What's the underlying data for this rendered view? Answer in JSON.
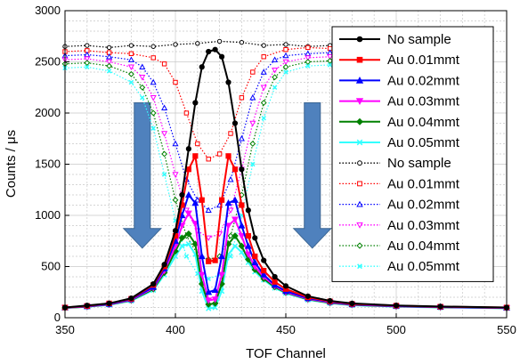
{
  "chart_data": {
    "type": "line",
    "xlabel": "TOF Channel",
    "ylabel": "Counts / μs",
    "xlim": [
      350,
      550
    ],
    "ylim": [
      0,
      3000
    ],
    "x_ticks": [
      350,
      400,
      450,
      500,
      550
    ],
    "y_ticks": [
      0,
      500,
      1000,
      1500,
      2000,
      2500,
      3000
    ],
    "grid": true,
    "legend_position": "top-right",
    "annotations": [
      {
        "type": "down-arrow",
        "x": 385,
        "y_from": 2100,
        "y_to": 680,
        "color": "#4f81bd"
      },
      {
        "type": "down-arrow",
        "x": 462,
        "y_from": 2100,
        "y_to": 680,
        "color": "#4f81bd"
      }
    ],
    "series": [
      {
        "name": "No sample",
        "color": "#000000",
        "style": "solid",
        "marker": "circle",
        "points": [
          [
            350,
            100
          ],
          [
            360,
            120
          ],
          [
            370,
            140
          ],
          [
            380,
            190
          ],
          [
            390,
            330
          ],
          [
            395,
            520
          ],
          [
            400,
            850
          ],
          [
            403,
            1200
          ],
          [
            406,
            1650
          ],
          [
            409,
            2100
          ],
          [
            412,
            2450
          ],
          [
            415,
            2600
          ],
          [
            418,
            2620
          ],
          [
            421,
            2550
          ],
          [
            424,
            2300
          ],
          [
            427,
            1900
          ],
          [
            430,
            1450
          ],
          [
            433,
            1050
          ],
          [
            436,
            780
          ],
          [
            440,
            560
          ],
          [
            445,
            400
          ],
          [
            450,
            310
          ],
          [
            460,
            210
          ],
          [
            470,
            165
          ],
          [
            480,
            140
          ],
          [
            500,
            120
          ],
          [
            520,
            110
          ],
          [
            550,
            100
          ]
        ]
      },
      {
        "name": "Au 0.01mmt",
        "color": "#ff0000",
        "style": "solid",
        "marker": "square",
        "points": [
          [
            350,
            100
          ],
          [
            360,
            115
          ],
          [
            370,
            140
          ],
          [
            380,
            185
          ],
          [
            390,
            320
          ],
          [
            395,
            500
          ],
          [
            400,
            800
          ],
          [
            403,
            1100
          ],
          [
            406,
            1450
          ],
          [
            409,
            1580
          ],
          [
            412,
            1150
          ],
          [
            415,
            550
          ],
          [
            418,
            560
          ],
          [
            421,
            1150
          ],
          [
            424,
            1580
          ],
          [
            427,
            1450
          ],
          [
            430,
            1100
          ],
          [
            433,
            800
          ],
          [
            436,
            600
          ],
          [
            440,
            460
          ],
          [
            445,
            350
          ],
          [
            450,
            280
          ],
          [
            460,
            200
          ],
          [
            470,
            160
          ],
          [
            480,
            135
          ],
          [
            500,
            118
          ],
          [
            520,
            108
          ],
          [
            550,
            100
          ]
        ]
      },
      {
        "name": "Au 0.02mmt",
        "color": "#0000ff",
        "style": "solid",
        "marker": "triangle",
        "points": [
          [
            350,
            100
          ],
          [
            360,
            112
          ],
          [
            370,
            135
          ],
          [
            380,
            180
          ],
          [
            390,
            300
          ],
          [
            395,
            480
          ],
          [
            400,
            750
          ],
          [
            403,
            1000
          ],
          [
            406,
            1200
          ],
          [
            409,
            1120
          ],
          [
            412,
            600
          ],
          [
            415,
            250
          ],
          [
            418,
            270
          ],
          [
            421,
            600
          ],
          [
            424,
            1120
          ],
          [
            427,
            1150
          ],
          [
            430,
            900
          ],
          [
            433,
            700
          ],
          [
            436,
            540
          ],
          [
            440,
            420
          ],
          [
            445,
            320
          ],
          [
            450,
            260
          ],
          [
            460,
            190
          ],
          [
            470,
            155
          ],
          [
            480,
            130
          ],
          [
            500,
            115
          ],
          [
            520,
            105
          ],
          [
            550,
            98
          ]
        ]
      },
      {
        "name": "Au 0.03mmt",
        "color": "#ff00ff",
        "style": "solid",
        "marker": "triangle-down",
        "points": [
          [
            350,
            98
          ],
          [
            360,
            110
          ],
          [
            370,
            130
          ],
          [
            380,
            175
          ],
          [
            390,
            290
          ],
          [
            395,
            460
          ],
          [
            400,
            700
          ],
          [
            403,
            900
          ],
          [
            406,
            1020
          ],
          [
            409,
            920
          ],
          [
            412,
            420
          ],
          [
            415,
            170
          ],
          [
            418,
            180
          ],
          [
            421,
            420
          ],
          [
            424,
            900
          ],
          [
            427,
            960
          ],
          [
            430,
            800
          ],
          [
            433,
            620
          ],
          [
            436,
            500
          ],
          [
            440,
            400
          ],
          [
            445,
            310
          ],
          [
            450,
            250
          ],
          [
            460,
            185
          ],
          [
            470,
            150
          ],
          [
            480,
            128
          ],
          [
            500,
            112
          ],
          [
            520,
            104
          ],
          [
            550,
            96
          ]
        ]
      },
      {
        "name": "Au 0.04mmt",
        "color": "#008000",
        "style": "solid",
        "marker": "diamond",
        "points": [
          [
            350,
            96
          ],
          [
            360,
            108
          ],
          [
            370,
            128
          ],
          [
            380,
            170
          ],
          [
            390,
            280
          ],
          [
            395,
            440
          ],
          [
            400,
            650
          ],
          [
            403,
            780
          ],
          [
            406,
            820
          ],
          [
            409,
            720
          ],
          [
            412,
            330
          ],
          [
            415,
            130
          ],
          [
            418,
            140
          ],
          [
            421,
            330
          ],
          [
            424,
            720
          ],
          [
            427,
            800
          ],
          [
            430,
            700
          ],
          [
            433,
            570
          ],
          [
            436,
            470
          ],
          [
            440,
            380
          ],
          [
            445,
            300
          ],
          [
            450,
            245
          ],
          [
            460,
            180
          ],
          [
            470,
            145
          ],
          [
            480,
            125
          ],
          [
            500,
            110
          ],
          [
            520,
            102
          ],
          [
            550,
            94
          ]
        ]
      },
      {
        "name": "Au 0.05mmt",
        "color": "#33ffff",
        "style": "solid",
        "marker": "x",
        "points": [
          [
            350,
            95
          ],
          [
            360,
            106
          ],
          [
            370,
            125
          ],
          [
            380,
            165
          ],
          [
            390,
            270
          ],
          [
            395,
            420
          ],
          [
            400,
            600
          ],
          [
            403,
            700
          ],
          [
            406,
            720
          ],
          [
            409,
            620
          ],
          [
            412,
            260
          ],
          [
            415,
            90
          ],
          [
            418,
            100
          ],
          [
            421,
            260
          ],
          [
            424,
            620
          ],
          [
            427,
            700
          ],
          [
            430,
            640
          ],
          [
            433,
            540
          ],
          [
            436,
            450
          ],
          [
            440,
            370
          ],
          [
            445,
            290
          ],
          [
            450,
            240
          ],
          [
            460,
            175
          ],
          [
            470,
            142
          ],
          [
            480,
            122
          ],
          [
            500,
            108
          ],
          [
            520,
            100
          ],
          [
            550,
            92
          ]
        ]
      },
      {
        "name": "No sample",
        "color": "#000000",
        "style": "dotted",
        "marker": "open-circle",
        "points": [
          [
            350,
            2650
          ],
          [
            360,
            2660
          ],
          [
            370,
            2640
          ],
          [
            380,
            2660
          ],
          [
            390,
            2650
          ],
          [
            400,
            2670
          ],
          [
            410,
            2680
          ],
          [
            420,
            2700
          ],
          [
            430,
            2690
          ],
          [
            440,
            2660
          ],
          [
            450,
            2670
          ],
          [
            460,
            2650
          ],
          [
            470,
            2660
          ],
          [
            480,
            2640
          ],
          [
            490,
            2655
          ]
        ]
      },
      {
        "name": "Au 0.01mmt",
        "color": "#ff0000",
        "style": "dotted",
        "marker": "open-square",
        "points": [
          [
            350,
            2600
          ],
          [
            360,
            2610
          ],
          [
            370,
            2590
          ],
          [
            380,
            2580
          ],
          [
            390,
            2540
          ],
          [
            395,
            2480
          ],
          [
            400,
            2300
          ],
          [
            405,
            2000
          ],
          [
            410,
            1700
          ],
          [
            415,
            1550
          ],
          [
            420,
            1600
          ],
          [
            425,
            1800
          ],
          [
            430,
            2150
          ],
          [
            435,
            2400
          ],
          [
            440,
            2550
          ],
          [
            450,
            2620
          ],
          [
            460,
            2640
          ],
          [
            470,
            2630
          ],
          [
            480,
            2650
          ],
          [
            490,
            2640
          ]
        ]
      },
      {
        "name": "Au 0.02mmt",
        "color": "#0000ff",
        "style": "dotted",
        "marker": "open-triangle",
        "points": [
          [
            350,
            2560
          ],
          [
            360,
            2570
          ],
          [
            370,
            2550
          ],
          [
            380,
            2520
          ],
          [
            385,
            2450
          ],
          [
            390,
            2300
          ],
          [
            395,
            2050
          ],
          [
            400,
            1700
          ],
          [
            405,
            1350
          ],
          [
            410,
            1150
          ],
          [
            415,
            1050
          ],
          [
            420,
            1100
          ],
          [
            425,
            1350
          ],
          [
            430,
            1750
          ],
          [
            435,
            2150
          ],
          [
            440,
            2400
          ],
          [
            445,
            2520
          ],
          [
            450,
            2560
          ],
          [
            460,
            2580
          ],
          [
            470,
            2590
          ],
          [
            480,
            2600
          ],
          [
            490,
            2590
          ]
        ]
      },
      {
        "name": "Au 0.03mmt",
        "color": "#ff00ff",
        "style": "dotted",
        "marker": "open-triangle-down",
        "points": [
          [
            350,
            2520
          ],
          [
            360,
            2530
          ],
          [
            370,
            2500
          ],
          [
            380,
            2450
          ],
          [
            385,
            2350
          ],
          [
            390,
            2150
          ],
          [
            395,
            1800
          ],
          [
            400,
            1400
          ],
          [
            405,
            1050
          ],
          [
            410,
            850
          ],
          [
            415,
            780
          ],
          [
            420,
            820
          ],
          [
            425,
            1050
          ],
          [
            430,
            1450
          ],
          [
            435,
            1900
          ],
          [
            440,
            2250
          ],
          [
            445,
            2420
          ],
          [
            450,
            2500
          ],
          [
            460,
            2540
          ],
          [
            470,
            2550
          ],
          [
            480,
            2560
          ],
          [
            490,
            2550
          ]
        ]
      },
      {
        "name": "Au 0.04mmt",
        "color": "#008000",
        "style": "dotted",
        "marker": "open-diamond",
        "points": [
          [
            350,
            2480
          ],
          [
            360,
            2490
          ],
          [
            370,
            2460
          ],
          [
            380,
            2380
          ],
          [
            385,
            2250
          ],
          [
            390,
            2000
          ],
          [
            395,
            1600
          ],
          [
            400,
            1150
          ],
          [
            405,
            800
          ],
          [
            410,
            620
          ],
          [
            415,
            570
          ],
          [
            420,
            600
          ],
          [
            425,
            800
          ],
          [
            430,
            1200
          ],
          [
            435,
            1700
          ],
          [
            440,
            2100
          ],
          [
            445,
            2350
          ],
          [
            450,
            2450
          ],
          [
            460,
            2500
          ],
          [
            470,
            2510
          ],
          [
            480,
            2520
          ],
          [
            490,
            2510
          ]
        ]
      },
      {
        "name": "Au 0.05mmt",
        "color": "#33ffff",
        "style": "dotted",
        "marker": "open-x",
        "points": [
          [
            350,
            2440
          ],
          [
            360,
            2450
          ],
          [
            370,
            2410
          ],
          [
            380,
            2300
          ],
          [
            385,
            2150
          ],
          [
            390,
            1850
          ],
          [
            395,
            1400
          ],
          [
            400,
            950
          ],
          [
            405,
            600
          ],
          [
            410,
            430
          ],
          [
            415,
            380
          ],
          [
            420,
            420
          ],
          [
            425,
            600
          ],
          [
            430,
            1000
          ],
          [
            435,
            1500
          ],
          [
            440,
            1950
          ],
          [
            445,
            2250
          ],
          [
            450,
            2400
          ],
          [
            460,
            2460
          ],
          [
            470,
            2470
          ],
          [
            480,
            2480
          ],
          [
            490,
            2470
          ]
        ]
      }
    ]
  }
}
